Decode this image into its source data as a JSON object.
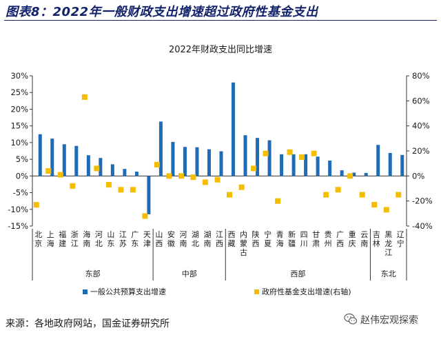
{
  "header": {
    "title": "图表8：2022年一般财政支出增速超过政府性基金支出"
  },
  "footer": {
    "source": "来源：各地政府网站，国金证券研究所"
  },
  "watermark": {
    "label": "赵伟宏观探索",
    "icon": "wechat-icon"
  },
  "colors": {
    "bar": "#1f6bb5",
    "dot": "#f5bd00",
    "header": "#12236b"
  },
  "chart_data": {
    "type": "bar",
    "title": "2022年财政支出同比增速",
    "categories": [
      "北京",
      "上海",
      "福建",
      "浙江",
      "海南",
      "河北",
      "山东",
      "江苏",
      "广东",
      "天津",
      "山西",
      "安徽",
      "河南",
      "湖北",
      "湖南",
      "江西",
      "西藏",
      "内蒙古",
      "陕西",
      "宁夏",
      "青海",
      "新疆",
      "四川",
      "甘肃",
      "贵州",
      "广西",
      "重庆",
      "云南",
      "吉林",
      "黑龙江",
      "辽宁"
    ],
    "category_labels": [
      "北京",
      "上海",
      "福建",
      "浙江",
      "海南",
      "河北",
      "山东",
      "江苏",
      "广东",
      "天津",
      "山西",
      "安徽",
      "河南",
      "湖北",
      "湖南",
      "江西",
      "西藏",
      "内蒙古",
      "陕西",
      "宁夏",
      "青海",
      "新疆",
      "四川",
      "甘肃",
      "贵州",
      "广西",
      "重庆",
      "云南",
      "吉林",
      "黑龙江",
      "辽宁"
    ],
    "groups": [
      {
        "name": "东部",
        "start": 0,
        "end": 9
      },
      {
        "name": "中部",
        "start": 10,
        "end": 15
      },
      {
        "name": "西部",
        "start": 16,
        "end": 27
      },
      {
        "name": "东北",
        "start": 28,
        "end": 30
      }
    ],
    "series": [
      {
        "name": "一般公共预算支出增速",
        "axis": "left",
        "values": [
          12.5,
          11.2,
          9.5,
          9.0,
          6.2,
          5.4,
          3.5,
          2.1,
          1.3,
          -11.5,
          16.3,
          10.2,
          8.7,
          8.6,
          8.0,
          7.4,
          28.0,
          12.2,
          11.4,
          10.7,
          6.5,
          6.5,
          6.5,
          5.8,
          4.6,
          1.7,
          1.0,
          0.9,
          9.3,
          6.9,
          6.3
        ]
      },
      {
        "name": "政府性基金支出增速(右轴)",
        "axis": "right",
        "values": [
          -23,
          4,
          1,
          -8,
          63,
          6,
          -7,
          -11,
          -11,
          -32,
          9,
          0,
          0,
          -1,
          -5,
          -3,
          -15,
          -9,
          6,
          18,
          -20,
          19,
          15,
          18,
          -15,
          -11,
          0,
          -15,
          -23,
          -27,
          -15
        ]
      }
    ],
    "left_axis": {
      "min": -15,
      "max": 30,
      "ticks": [
        "-15%",
        "-10%",
        "-5%",
        "0%",
        "5%",
        "10%",
        "15%",
        "20%",
        "25%",
        "30%"
      ]
    },
    "right_axis": {
      "min": -40,
      "max": 80,
      "ticks": [
        "-40%",
        "-20%",
        "0%",
        "20%",
        "40%",
        "60%",
        "80%"
      ]
    },
    "legend": {
      "placement": "bottom"
    },
    "grid": false
  }
}
